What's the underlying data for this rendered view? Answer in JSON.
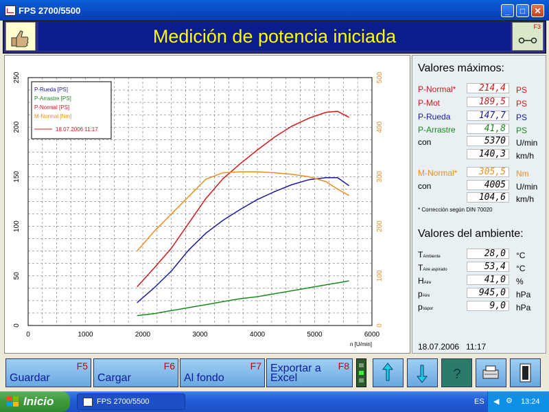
{
  "window": {
    "title": "FPS 2700/5500"
  },
  "header": {
    "title": "Medición de potencia iniciada",
    "f3_key": "F3"
  },
  "chart_data": {
    "type": "line",
    "xlabel": "n [U/min]",
    "xlim": [
      0,
      6000
    ],
    "x_ticks": [
      "0",
      "1000",
      "2000",
      "3000",
      "4000",
      "5000",
      "6000"
    ],
    "ylim_left": [
      0,
      250
    ],
    "y_ticks_left": [
      "0",
      "50",
      "100",
      "150",
      "200",
      "250"
    ],
    "ylim_right": [
      0,
      500
    ],
    "y_ticks_right": [
      "0",
      "100",
      "200",
      "300",
      "400",
      "500"
    ],
    "legend": {
      "position": "top-left",
      "entries": [
        "P-Rueda [PS]",
        "P-Arrastre [PS]",
        "P-Normal [PS]",
        "M-Normal [Nm]"
      ],
      "line_label": "18.07.2006 11:17"
    },
    "grid": true,
    "series": [
      {
        "name": "P-Rueda [PS]",
        "axis": "left",
        "color": "#1a1aa0",
        "points": [
          [
            1900,
            23
          ],
          [
            2200,
            38
          ],
          [
            2500,
            55
          ],
          [
            2800,
            76
          ],
          [
            3100,
            93
          ],
          [
            3400,
            106
          ],
          [
            3700,
            117
          ],
          [
            4000,
            127
          ],
          [
            4300,
            135
          ],
          [
            4600,
            142
          ],
          [
            4900,
            147
          ],
          [
            5200,
            149
          ],
          [
            5400,
            149
          ],
          [
            5600,
            141
          ]
        ]
      },
      {
        "name": "P-Arrastre [PS]",
        "axis": "left",
        "color": "#1a8a1a",
        "points": [
          [
            1900,
            10
          ],
          [
            2200,
            12
          ],
          [
            2500,
            15
          ],
          [
            2800,
            18
          ],
          [
            3100,
            21
          ],
          [
            3400,
            24
          ],
          [
            3700,
            27
          ],
          [
            4000,
            29
          ],
          [
            4300,
            32
          ],
          [
            4600,
            35
          ],
          [
            4900,
            38
          ],
          [
            5200,
            41
          ],
          [
            5500,
            44
          ],
          [
            5600,
            45
          ]
        ]
      },
      {
        "name": "P-Normal [PS]",
        "axis": "left",
        "color": "#d01818",
        "points": [
          [
            1900,
            39
          ],
          [
            2200,
            58
          ],
          [
            2500,
            78
          ],
          [
            2800,
            103
          ],
          [
            3100,
            128
          ],
          [
            3400,
            148
          ],
          [
            3700,
            163
          ],
          [
            4000,
            177
          ],
          [
            4300,
            190
          ],
          [
            4600,
            201
          ],
          [
            4900,
            209
          ],
          [
            5200,
            215
          ],
          [
            5400,
            216
          ],
          [
            5600,
            210
          ]
        ]
      },
      {
        "name": "M-Normal [Nm]",
        "axis": "right",
        "color": "#f08c1e",
        "points": [
          [
            1900,
            150
          ],
          [
            2200,
            190
          ],
          [
            2500,
            225
          ],
          [
            2800,
            260
          ],
          [
            3100,
            295
          ],
          [
            3400,
            308
          ],
          [
            3700,
            310
          ],
          [
            4000,
            310
          ],
          [
            4300,
            308
          ],
          [
            4600,
            305
          ],
          [
            4900,
            300
          ],
          [
            5200,
            290
          ],
          [
            5400,
            275
          ],
          [
            5600,
            262
          ]
        ]
      }
    ]
  },
  "max_values": {
    "title": "Valores máximos:",
    "rows": [
      {
        "label": "P-Normal*",
        "value": "214,4",
        "unit": "PS"
      },
      {
        "label": "P-Mot",
        "value": "189,5",
        "unit": "PS"
      },
      {
        "label": "P-Rueda",
        "value": "147,7",
        "unit": "PS"
      },
      {
        "label": "P-Arrastre",
        "value": "41,8",
        "unit": "PS"
      },
      {
        "label": "con",
        "value": "5370",
        "unit": "U/min"
      },
      {
        "label": "",
        "value": "140,3",
        "unit": "km/h"
      },
      {
        "label": "M-Normal*",
        "value": "305,5",
        "unit": "Nm"
      },
      {
        "label": "con",
        "value": "4005",
        "unit": "U/min"
      },
      {
        "label": "",
        "value": "104,6",
        "unit": "km/h"
      }
    ],
    "note": "* Corrección según DIN 70020"
  },
  "ambient": {
    "title": "Valores del ambiente:",
    "rows": [
      {
        "main": "T",
        "sub": "Ambiente",
        "value": "28,0",
        "unit": "°C"
      },
      {
        "main": "T",
        "sub": "Aire aspirado",
        "value": "53,4",
        "unit": "°C"
      },
      {
        "main": "H",
        "sub": "Aire",
        "value": "41,0",
        "unit": "%"
      },
      {
        "main": "p",
        "sub": "Aire",
        "value": "945,0",
        "unit": "hPa"
      },
      {
        "main": "p",
        "sub": "Vapor",
        "value": "9,0",
        "unit": "hPa"
      }
    ],
    "timestamp": "18.07.2006   11:17"
  },
  "buttons": [
    {
      "key": "F5",
      "label": "Guardar"
    },
    {
      "key": "F6",
      "label": "Cargar"
    },
    {
      "key": "F7",
      "label": "Al fondo"
    },
    {
      "key": "F8",
      "label": "Exportar a Excel"
    }
  ],
  "taskbar": {
    "start": "Inicio",
    "task": "FPS 2700/5500",
    "lang": "ES",
    "clock": "13:24"
  },
  "colors": {
    "red": "#d01818",
    "blue": "#1a1aa0",
    "green": "#1a8a1a",
    "orange": "#f08c1e"
  }
}
